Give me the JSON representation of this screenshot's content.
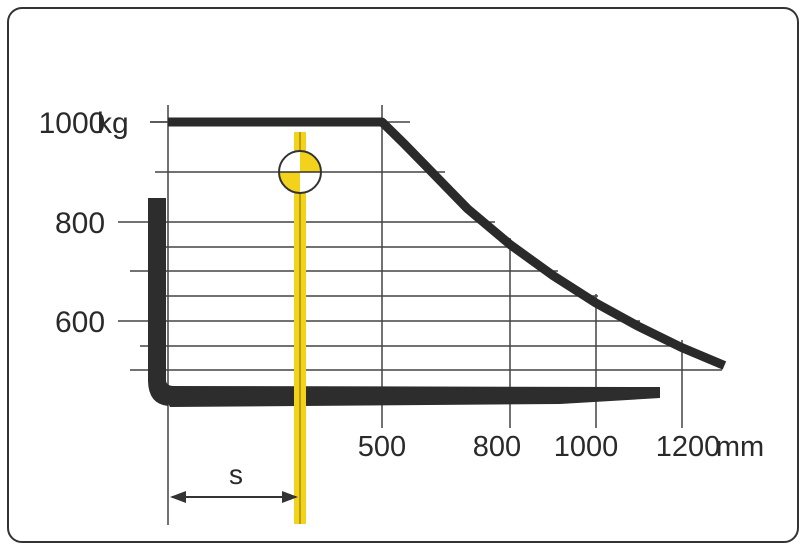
{
  "chart_data": {
    "type": "line",
    "title": "",
    "xlabel": "mm",
    "ylabel": "kg",
    "x_ticks": [
      "500",
      "800",
      "1000",
      "1200"
    ],
    "y_ticks": [
      "1000",
      "800",
      "600"
    ],
    "y_unit": "kg",
    "x_unit": "mm",
    "load_curve": {
      "x": [
        0,
        500,
        550,
        600,
        650,
        700,
        800,
        900,
        1000,
        1100,
        1200,
        1300
      ],
      "y": [
        1000,
        1000,
        958,
        914,
        870,
        826,
        754,
        692,
        637,
        590,
        548,
        512
      ]
    },
    "marker_label": "s",
    "colors": {
      "curve": "#2a2a2a",
      "marker": "#f2d21a",
      "frame": "#333333"
    }
  }
}
